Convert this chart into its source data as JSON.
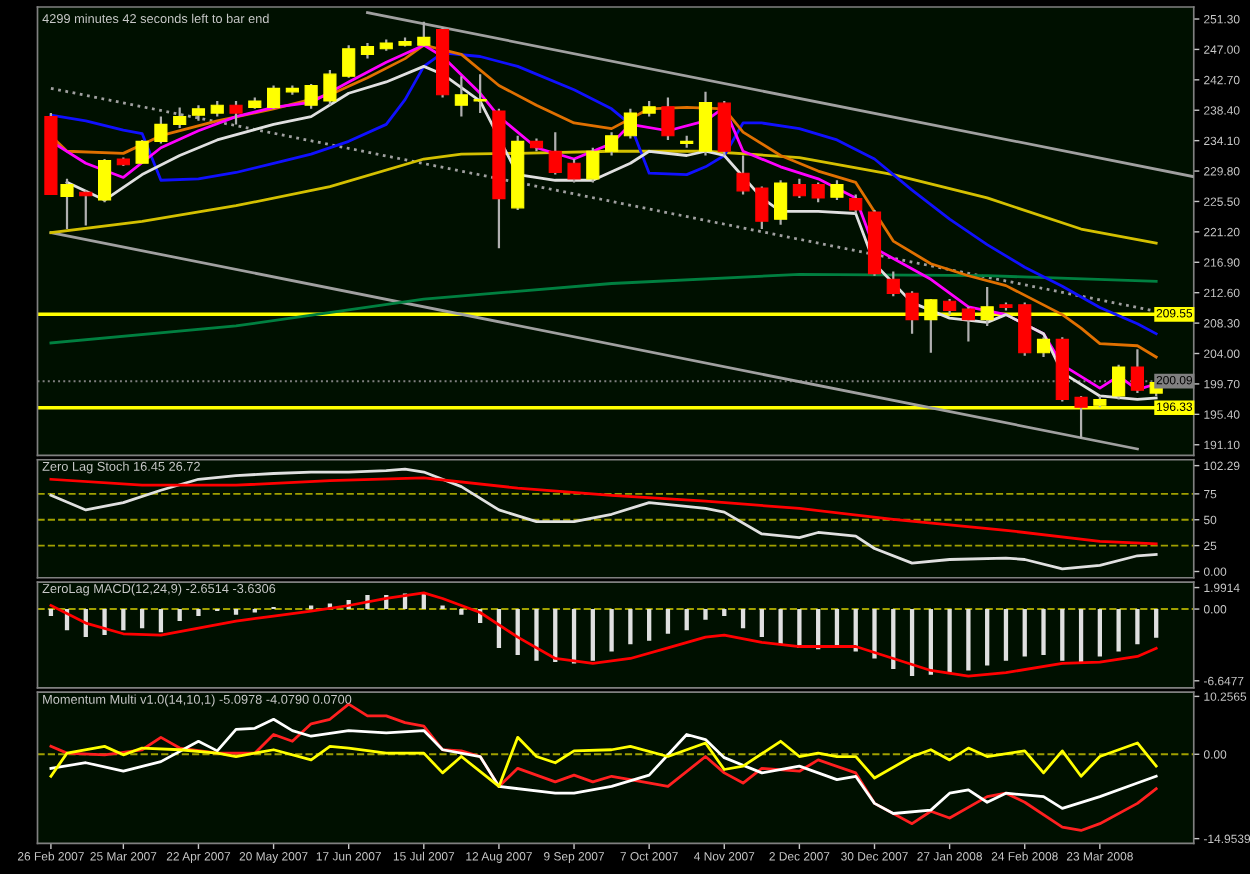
{
  "chart_data": [
    {
      "type": "candlestick",
      "title": "4299 minutes 42 seconds left to bar end",
      "x": [
        "2007-02-26",
        "2007-03-04",
        "2007-03-11",
        "2007-03-18",
        "2007-03-25",
        "2007-04-01",
        "2007-04-08",
        "2007-04-15",
        "2007-04-22",
        "2007-04-29",
        "2007-05-06",
        "2007-05-13",
        "2007-05-20",
        "2007-05-27",
        "2007-06-03",
        "2007-06-10",
        "2007-06-17",
        "2007-06-24",
        "2007-07-01",
        "2007-07-08",
        "2007-07-15",
        "2007-07-22",
        "2007-07-29",
        "2007-08-05",
        "2007-08-12",
        "2007-08-19",
        "2007-08-26",
        "2007-09-02",
        "2007-09-09",
        "2007-09-16",
        "2007-09-23",
        "2007-09-30",
        "2007-10-07",
        "2007-10-14",
        "2007-10-21",
        "2007-10-28",
        "2007-11-04",
        "2007-11-11",
        "2007-11-18",
        "2007-11-25",
        "2007-12-02",
        "2007-12-09",
        "2007-12-16",
        "2007-12-23",
        "2007-12-30",
        "2008-01-06",
        "2008-01-13",
        "2008-01-20",
        "2008-01-27",
        "2008-02-03",
        "2008-02-10",
        "2008-02-17",
        "2008-02-24",
        "2008-03-02",
        "2008-03-09",
        "2008-03-16",
        "2008-03-23",
        "2008-03-30",
        "2008-04-06",
        "2008-04-13"
      ],
      "ohlc": [
        [
          237.5,
          238.0,
          226.5,
          226.5
        ],
        [
          226.2,
          228.7,
          221.6,
          227.9
        ],
        [
          226.8,
          227.1,
          222.1,
          226.3
        ],
        [
          225.7,
          231.5,
          225.4,
          231.3
        ],
        [
          231.5,
          231.7,
          230.5,
          230.7
        ],
        [
          230.9,
          234.2,
          230.9,
          234.0
        ],
        [
          234.0,
          237.5,
          233.7,
          236.4
        ],
        [
          236.4,
          238.8,
          235.9,
          237.5
        ],
        [
          237.7,
          239.1,
          236.9,
          238.6
        ],
        [
          238.0,
          239.7,
          237.5,
          239.1
        ],
        [
          239.1,
          239.7,
          236.4,
          238.0
        ],
        [
          238.8,
          240.2,
          238.6,
          239.7
        ],
        [
          238.8,
          241.9,
          238.6,
          241.5
        ],
        [
          241.0,
          241.9,
          240.6,
          241.5
        ],
        [
          239.1,
          242.1,
          238.6,
          241.9
        ],
        [
          239.7,
          244.1,
          239.1,
          243.5
        ],
        [
          243.2,
          247.6,
          243.0,
          247.1
        ],
        [
          246.3,
          247.9,
          245.7,
          247.4
        ],
        [
          247.1,
          248.4,
          246.8,
          247.9
        ],
        [
          247.6,
          248.7,
          247.4,
          248.1
        ],
        [
          247.6,
          250.9,
          247.4,
          248.7
        ],
        [
          249.8,
          250.1,
          240.2,
          240.6
        ],
        [
          239.1,
          243.2,
          237.5,
          240.6
        ],
        [
          239.7,
          243.5,
          238.0,
          239.9
        ],
        [
          238.3,
          238.6,
          218.9,
          225.9
        ],
        [
          224.6,
          234.8,
          224.3,
          234.0
        ],
        [
          234.0,
          234.4,
          232.6,
          233.1
        ],
        [
          232.6,
          235.3,
          229.3,
          229.6
        ],
        [
          230.9,
          231.5,
          228.2,
          228.7
        ],
        [
          228.7,
          233.1,
          228.2,
          232.6
        ],
        [
          232.6,
          235.3,
          232.0,
          234.8
        ],
        [
          234.8,
          238.6,
          234.4,
          238.0
        ],
        [
          238.0,
          239.7,
          237.5,
          238.9
        ],
        [
          238.9,
          240.2,
          234.2,
          234.8
        ],
        [
          233.7,
          234.8,
          233.1,
          234.0
        ],
        [
          232.6,
          241.0,
          232.0,
          239.5
        ],
        [
          239.4,
          239.7,
          232.0,
          232.6
        ],
        [
          229.5,
          232.0,
          226.5,
          227.0
        ],
        [
          227.4,
          227.6,
          221.6,
          222.7
        ],
        [
          223.0,
          228.5,
          222.2,
          228.1
        ],
        [
          227.9,
          228.7,
          226.0,
          226.3
        ],
        [
          227.9,
          228.2,
          225.4,
          226.0
        ],
        [
          226.1,
          228.5,
          225.7,
          227.9
        ],
        [
          225.9,
          226.5,
          223.8,
          224.3
        ],
        [
          224.0,
          224.3,
          215.0,
          215.3
        ],
        [
          214.5,
          215.6,
          212.1,
          212.5
        ],
        [
          212.5,
          212.8,
          206.8,
          208.8
        ],
        [
          208.8,
          211.7,
          204.1,
          211.6
        ],
        [
          211.4,
          211.7,
          209.5,
          210.1
        ],
        [
          210.3,
          210.6,
          205.7,
          208.8
        ],
        [
          208.8,
          213.4,
          207.9,
          210.6
        ],
        [
          210.9,
          211.2,
          210.1,
          210.5
        ],
        [
          210.9,
          211.2,
          203.7,
          204.1
        ],
        [
          204.1,
          206.3,
          203.5,
          206.0
        ],
        [
          206.0,
          206.3,
          197.2,
          197.5
        ],
        [
          197.8,
          198.0,
          192.0,
          196.4
        ],
        [
          196.7,
          198.0,
          196.4,
          197.5
        ],
        [
          198.0,
          202.4,
          197.5,
          202.1
        ],
        [
          202.1,
          204.6,
          198.4,
          198.8
        ],
        [
          198.4,
          200.2,
          198.0,
          199.9
        ]
      ],
      "colors": [
        "#ff0000",
        "#ffff00",
        "#ff0000",
        "#ffff00",
        "#ff0000",
        "#ffff00",
        "#ffff00",
        "#ffff00",
        "#ffff00",
        "#ffff00",
        "#ff0000",
        "#ffff00",
        "#ffff00",
        "#ffff00",
        "#ffff00",
        "#ffff00",
        "#ffff00",
        "#ffff00",
        "#ffff00",
        "#ffff00",
        "#ffff00",
        "#ff0000",
        "#ffff00",
        "#ffff00",
        "#ff0000",
        "#ffff00",
        "#ff0000",
        "#ff0000",
        "#ff0000",
        "#ffff00",
        "#ffff00",
        "#ffff00",
        "#ffff00",
        "#ff0000",
        "#ffff00",
        "#ffff00",
        "#ff0000",
        "#ff0000",
        "#ff0000",
        "#ffff00",
        "#ff0000",
        "#ff0000",
        "#ffff00",
        "#ff0000",
        "#ff0000",
        "#ff0000",
        "#ff0000",
        "#ffff00",
        "#ff0000",
        "#ff0000",
        "#ffff00",
        "#ff0000",
        "#ff0000",
        "#ffff00",
        "#ff0000",
        "#ff0000",
        "#ffff00",
        "#ffff00",
        "#ff0000",
        "#ffff00"
      ],
      "series": [
        {
          "type": "line",
          "color": "#a0a0a0",
          "x": [
            "2007-06-24",
            "2008-04-27"
          ],
          "values": [
            252.2,
            229.0
          ]
        },
        {
          "type": "line",
          "color": "#a0a0a0",
          "line_style": "dotted",
          "x": [
            "2007-02-26",
            "2008-04-27"
          ],
          "values": [
            241.5,
            208.9
          ]
        },
        {
          "type": "line",
          "color": "#a0a0a0",
          "x": [
            "2007-02-26",
            "2008-04-06"
          ],
          "values": [
            221.1,
            190.5
          ]
        },
        {
          "type": "line",
          "color": "#008040",
          "x": [
            "2007-02-26",
            "2007-05-06",
            "2007-07-15",
            "2007-09-23",
            "2007-12-02",
            "2008-02-10",
            "2008-04-13"
          ],
          "values": [
            205.5,
            207.9,
            211.7,
            213.9,
            215.2,
            215.0,
            214.2
          ]
        },
        {
          "type": "line",
          "color": "#d4c000",
          "x": [
            "2007-02-26",
            "2007-04-01",
            "2007-05-06",
            "2007-06-10",
            "2007-07-15",
            "2007-07-29",
            "2007-08-19",
            "2007-09-23",
            "2007-10-28",
            "2007-12-02",
            "2008-01-06",
            "2008-02-10",
            "2008-03-16",
            "2008-04-13"
          ],
          "values": [
            221.1,
            222.7,
            224.9,
            227.6,
            231.5,
            232.2,
            232.3,
            232.6,
            232.6,
            231.7,
            229.3,
            226.0,
            221.6,
            219.6
          ]
        },
        {
          "type": "line",
          "color": "#1010ff",
          "x": [
            "2007-02-26",
            "2007-03-11",
            "2007-03-25",
            "2007-04-01",
            "2007-04-08",
            "2007-04-22",
            "2007-05-06",
            "2007-05-20",
            "2007-06-03",
            "2007-06-17",
            "2007-07-01",
            "2007-07-08",
            "2007-07-15",
            "2007-07-22",
            "2007-08-05",
            "2007-08-19",
            "2007-09-09",
            "2007-09-23",
            "2007-09-30",
            "2007-10-07",
            "2007-10-21",
            "2007-10-28",
            "2007-11-04",
            "2007-11-11",
            "2007-11-18",
            "2007-12-02",
            "2007-12-16",
            "2007-12-30",
            "2008-01-13",
            "2008-01-27",
            "2008-02-10",
            "2008-02-24",
            "2008-03-09",
            "2008-03-23",
            "2008-04-06",
            "2008-04-13"
          ],
          "values": [
            237.7,
            236.9,
            235.6,
            235.1,
            228.5,
            228.7,
            229.6,
            230.9,
            232.2,
            234.0,
            236.4,
            239.9,
            244.6,
            246.5,
            246.0,
            244.6,
            241.3,
            238.6,
            236.4,
            229.5,
            229.3,
            230.4,
            232.0,
            236.6,
            236.6,
            235.8,
            234.2,
            231.5,
            227.1,
            223.0,
            219.4,
            216.2,
            213.5,
            210.5,
            208.2,
            206.8
          ]
        },
        {
          "type": "line",
          "color": "#e07000",
          "x": [
            "2007-02-26",
            "2007-03-04",
            "2007-03-25",
            "2007-04-08",
            "2007-04-29",
            "2007-05-20",
            "2007-06-10",
            "2007-06-24",
            "2007-07-08",
            "2007-07-15",
            "2007-07-29",
            "2007-08-12",
            "2007-08-26",
            "2007-09-09",
            "2007-09-23",
            "2007-10-07",
            "2007-10-21",
            "2007-11-04",
            "2007-11-11",
            "2007-11-25",
            "2007-12-09",
            "2007-12-23",
            "2008-01-06",
            "2008-01-20",
            "2008-02-03",
            "2008-02-17",
            "2008-03-09",
            "2008-03-16",
            "2008-03-23",
            "2008-04-06",
            "2008-04-13"
          ],
          "values": [
            234.8,
            232.6,
            232.3,
            234.8,
            236.9,
            238.6,
            240.6,
            243.0,
            245.7,
            247.6,
            246.3,
            241.9,
            239.1,
            236.6,
            235.8,
            238.6,
            238.8,
            238.6,
            235.3,
            232.0,
            229.8,
            228.2,
            219.9,
            216.7,
            215.0,
            213.6,
            209.5,
            207.6,
            205.4,
            205.1,
            203.5
          ]
        },
        {
          "type": "line",
          "color": "#ff00ff",
          "x": [
            "2007-02-26",
            "2007-03-11",
            "2007-03-25",
            "2007-04-08",
            "2007-04-22",
            "2007-05-06",
            "2007-05-20",
            "2007-06-03",
            "2007-06-17",
            "2007-07-01",
            "2007-07-15",
            "2007-07-22",
            "2007-08-05",
            "2007-08-12",
            "2007-08-26",
            "2007-09-09",
            "2007-09-23",
            "2007-09-30",
            "2007-10-14",
            "2007-10-28",
            "2007-11-04",
            "2007-11-11",
            "2007-11-25",
            "2007-12-09",
            "2007-12-23",
            "2007-12-30",
            "2008-01-20",
            "2008-02-03",
            "2008-02-17",
            "2008-03-02",
            "2008-03-09",
            "2008-03-23",
            "2008-03-30",
            "2008-04-06",
            "2008-04-13"
          ],
          "values": [
            234.0,
            230.9,
            228.9,
            233.1,
            235.5,
            237.5,
            238.8,
            239.5,
            242.4,
            245.2,
            247.6,
            246.0,
            240.8,
            237.5,
            233.1,
            231.5,
            233.7,
            236.4,
            235.5,
            236.9,
            238.8,
            232.6,
            230.4,
            228.7,
            226.0,
            218.9,
            214.5,
            210.6,
            209.5,
            206.8,
            202.4,
            199.1,
            200.8,
            198.9,
            199.7
          ]
        },
        {
          "type": "line",
          "color": "#e0e0e0",
          "x": [
            "2007-03-04",
            "2007-03-18",
            "2007-04-01",
            "2007-04-15",
            "2007-04-29",
            "2007-05-20",
            "2007-06-03",
            "2007-06-17",
            "2007-07-01",
            "2007-07-15",
            "2007-07-22",
            "2007-08-05",
            "2007-08-19",
            "2007-09-02",
            "2007-09-16",
            "2007-09-30",
            "2007-10-07",
            "2007-10-21",
            "2007-10-28",
            "2007-11-04",
            "2007-11-18",
            "2007-11-25",
            "2007-12-09",
            "2007-12-23",
            "2007-12-30",
            "2008-01-13",
            "2008-01-27",
            "2008-02-10",
            "2008-02-17",
            "2008-03-02",
            "2008-03-09",
            "2008-03-23",
            "2008-04-06",
            "2008-04-13"
          ],
          "values": [
            228.2,
            225.7,
            229.3,
            232.0,
            234.2,
            236.4,
            237.5,
            240.8,
            242.4,
            244.6,
            243.5,
            239.7,
            229.3,
            228.5,
            228.5,
            230.9,
            232.6,
            232.0,
            232.6,
            232.0,
            226.0,
            224.1,
            224.1,
            223.8,
            216.7,
            211.2,
            209.0,
            208.4,
            209.5,
            206.8,
            201.3,
            198.0,
            197.5,
            197.7
          ]
        }
      ],
      "ref_lines": [
        {
          "axis": "y",
          "value": 209.55,
          "label": "209.55",
          "color": "#ffff00"
        },
        {
          "axis": "y",
          "value": 196.33,
          "label": "196.33",
          "color": "#ffff00"
        },
        {
          "axis": "y",
          "value": 200.09,
          "label": "200.09",
          "color": "#808080",
          "line_style": "dotted"
        }
      ],
      "xlim": [
        "2007-02-21",
        "2008-04-27"
      ],
      "ylim": [
        189.6,
        253.0
      ],
      "yticks": [
        {
          "value": 191.1,
          "label": "191.10"
        },
        {
          "value": 195.4,
          "label": "195.40"
        },
        {
          "value": 199.7,
          "label": "199.70"
        },
        {
          "value": 204.0,
          "label": "204.00"
        },
        {
          "value": 208.3,
          "label": "208.30"
        },
        {
          "value": 212.6,
          "label": "212.60"
        },
        {
          "value": 216.9,
          "label": "216.90"
        },
        {
          "value": 221.2,
          "label": "221.20"
        },
        {
          "value": 225.5,
          "label": "225.50"
        },
        {
          "value": 229.8,
          "label": "229.80"
        },
        {
          "value": 234.1,
          "label": "234.10"
        },
        {
          "value": 238.4,
          "label": "238.40"
        },
        {
          "value": 242.7,
          "label": "242.70"
        },
        {
          "value": 247.0,
          "label": "247.00"
        },
        {
          "value": 251.3,
          "label": "251.30"
        }
      ],
      "tick_labels": "y"
    },
    {
      "type": "line",
      "title": "Zero Lag Stoch 16.45 26.72",
      "series": [
        {
          "color": "#e0e0e0",
          "x": [
            "2007-02-26",
            "2007-03-11",
            "2007-03-25",
            "2007-04-08",
            "2007-04-22",
            "2007-05-06",
            "2007-05-20",
            "2007-06-03",
            "2007-06-17",
            "2007-07-01",
            "2007-07-08",
            "2007-07-15",
            "2007-07-29",
            "2007-08-12",
            "2007-08-26",
            "2007-09-09",
            "2007-09-23",
            "2007-10-07",
            "2007-10-28",
            "2007-11-04",
            "2007-11-18",
            "2007-12-02",
            "2007-12-09",
            "2007-12-23",
            "2007-12-30",
            "2008-01-13",
            "2008-01-27",
            "2008-02-17",
            "2008-02-24",
            "2008-03-09",
            "2008-03-23",
            "2008-04-06",
            "2008-04-13"
          ],
          "values": [
            73.6,
            59.5,
            66.6,
            78.5,
            89.1,
            92.6,
            94.7,
            96.1,
            96.1,
            97.5,
            98.9,
            96.1,
            82.0,
            59.5,
            48.2,
            48.2,
            55.3,
            66.6,
            60.9,
            57.4,
            36.3,
            32.8,
            37.7,
            34.2,
            22.2,
            8.1,
            11.6,
            13.0,
            11.6,
            2.5,
            6.0,
            15.2,
            16.45
          ]
        },
        {
          "color": "#ff0000",
          "x": [
            "2007-02-26",
            "2007-04-01",
            "2007-05-06",
            "2007-06-10",
            "2007-07-15",
            "2007-08-19",
            "2007-09-23",
            "2007-10-28",
            "2007-12-02",
            "2008-01-06",
            "2008-02-17",
            "2008-03-23",
            "2008-04-13"
          ],
          "values": [
            89.1,
            83.4,
            83.4,
            87.7,
            90.5,
            80.6,
            73.6,
            68.0,
            60.9,
            50.4,
            39.8,
            29.2,
            26.72
          ]
        }
      ],
      "ref_lines": [
        {
          "axis": "y",
          "value": 75,
          "color": "#a0a000",
          "line_style": "dashed"
        },
        {
          "axis": "y",
          "value": 50,
          "color": "#a0a000",
          "line_style": "dashed"
        },
        {
          "axis": "y",
          "value": 25,
          "color": "#a0a000",
          "line_style": "dashed"
        }
      ],
      "xlim": [
        "2007-02-21",
        "2008-04-27"
      ],
      "ylim": [
        -6,
        108
      ],
      "yticks": [
        {
          "value": 0,
          "label": "0.00"
        },
        25,
        50,
        75,
        102.29
      ],
      "tick_labels": "y"
    },
    {
      "type": "bar",
      "title": "ZeroLag MACD(12,24,9) -2.6514 -3.6306",
      "x": [
        "2007-02-26",
        "2007-03-04",
        "2007-03-11",
        "2007-03-18",
        "2007-03-25",
        "2007-04-01",
        "2007-04-08",
        "2007-04-15",
        "2007-04-22",
        "2007-04-29",
        "2007-05-06",
        "2007-05-13",
        "2007-05-20",
        "2007-05-27",
        "2007-06-03",
        "2007-06-10",
        "2007-06-17",
        "2007-06-24",
        "2007-07-01",
        "2007-07-08",
        "2007-07-15",
        "2007-07-22",
        "2007-07-29",
        "2007-08-05",
        "2007-08-12",
        "2007-08-19",
        "2007-08-26",
        "2007-09-02",
        "2007-09-09",
        "2007-09-16",
        "2007-09-23",
        "2007-09-30",
        "2007-10-07",
        "2007-10-14",
        "2007-10-21",
        "2007-10-28",
        "2007-11-04",
        "2007-11-11",
        "2007-11-18",
        "2007-11-25",
        "2007-12-02",
        "2007-12-09",
        "2007-12-16",
        "2007-12-23",
        "2007-12-30",
        "2008-01-06",
        "2008-01-13",
        "2008-01-20",
        "2008-01-27",
        "2008-02-03",
        "2008-02-10",
        "2008-02-17",
        "2008-02-24",
        "2008-03-02",
        "2008-03-09",
        "2008-03-16",
        "2008-03-23",
        "2008-03-30",
        "2008-04-06",
        "2008-04-13"
      ],
      "series": [
        {
          "type": "bar",
          "color": "#e0e0e0",
          "values": [
            -0.65,
            -1.96,
            -2.6,
            -2.4,
            -1.96,
            -1.77,
            -2.16,
            -1.11,
            -0.65,
            -0.19,
            -0.52,
            -0.32,
            0.2,
            null,
            0.33,
            0.52,
            0.85,
            1.31,
            1.31,
            1.44,
            1.5,
            0.33,
            -0.52,
            -1.3,
            -3.6,
            -4.26,
            -4.78,
            -4.91,
            -5.04,
            -4.78,
            -3.93,
            -3.27,
            -2.94,
            -2.29,
            -1.96,
            -0.98,
            -0.65,
            -1.77,
            -2.6,
            -3.27,
            -3.6,
            -3.73,
            -3.6,
            -3.93,
            -4.58,
            -5.56,
            -6.21,
            -6.08,
            -5.89,
            -5.69,
            -5.23,
            -4.78,
            -4.39,
            -4.26,
            -4.78,
            -4.91,
            -4.39,
            -3.93,
            -3.27,
            -2.65
          ]
        },
        {
          "type": "line",
          "color": "#ff0000",
          "x": [
            "2007-02-26",
            "2007-03-11",
            "2007-03-25",
            "2007-04-08",
            "2007-04-22",
            "2007-05-06",
            "2007-05-20",
            "2007-06-03",
            "2007-06-17",
            "2007-07-01",
            "2007-07-15",
            "2007-07-22",
            "2007-08-05",
            "2007-08-19",
            "2007-09-02",
            "2007-09-16",
            "2007-09-30",
            "2007-10-14",
            "2007-10-28",
            "2007-11-04",
            "2007-11-18",
            "2007-12-02",
            "2007-12-23",
            "2008-01-06",
            "2008-01-20",
            "2008-02-03",
            "2008-02-17",
            "2008-03-09",
            "2008-03-23",
            "2008-04-06",
            "2008-04-13"
          ],
          "values": [
            0.33,
            -1.3,
            -2.29,
            -2.42,
            -1.77,
            -1.11,
            -0.65,
            -0.19,
            0.33,
            0.98,
            1.5,
            0.98,
            -0.32,
            -2.6,
            -4.58,
            -5.04,
            -4.58,
            -3.6,
            -2.6,
            -2.42,
            -3.08,
            -3.47,
            -3.47,
            -4.58,
            -5.69,
            -6.21,
            -5.89,
            -5.04,
            -4.91,
            -4.39,
            -3.63
          ]
        }
      ],
      "ref_lines": [
        {
          "axis": "y",
          "value": 0,
          "color": "#a0a000",
          "line_style": "dashed"
        }
      ],
      "xlim": [
        "2007-02-21",
        "2008-04-27"
      ],
      "ylim": [
        -7.3,
        2.5
      ],
      "yticks": [
        -6.6477,
        {
          "value": 0,
          "label": "0.00"
        },
        1.9914
      ],
      "tick_labels": "y"
    },
    {
      "type": "line",
      "title": "Momentum Multi v1.0(14,10,1) -5.0978 -4.0790 0.0700",
      "series": [
        {
          "color": "#ff2020",
          "x": [
            "2007-02-26",
            "2007-03-04",
            "2007-03-18",
            "2007-04-01",
            "2007-04-08",
            "2007-04-15",
            "2007-04-29",
            "2007-05-13",
            "2007-05-20",
            "2007-05-27",
            "2007-06-03",
            "2007-06-10",
            "2007-06-17",
            "2007-06-24",
            "2007-07-01",
            "2007-07-08",
            "2007-07-15",
            "2007-07-22",
            "2007-07-29",
            "2007-08-05",
            "2007-08-12",
            "2007-08-19",
            "2007-09-02",
            "2007-09-09",
            "2007-09-16",
            "2007-09-23",
            "2007-09-30",
            "2007-10-14",
            "2007-10-28",
            "2007-11-04",
            "2007-11-11",
            "2007-11-18",
            "2007-12-02",
            "2007-12-09",
            "2007-12-23",
            "2007-12-30",
            "2008-01-13",
            "2008-01-20",
            "2008-01-27",
            "2008-02-10",
            "2008-02-17",
            "2008-02-24",
            "2008-03-09",
            "2008-03-16",
            "2008-03-23",
            "2008-04-06",
            "2008-04-13"
          ],
          "values": [
            1.4,
            0.2,
            -0.1,
            0.8,
            3.0,
            1.1,
            0.2,
            0.2,
            3.5,
            2.3,
            5.4,
            6.2,
            8.9,
            6.8,
            6.8,
            5.6,
            5.0,
            0.8,
            0.6,
            -0.4,
            -5.7,
            -2.5,
            -4.9,
            -3.7,
            -4.9,
            -3.9,
            -4.5,
            -5.7,
            -0.4,
            -3.3,
            -5.1,
            -2.5,
            -3.0,
            -1.0,
            -3.3,
            -8.7,
            -12.3,
            -10.1,
            -11.3,
            -7.5,
            -6.9,
            -8.5,
            -12.9,
            -13.5,
            -12.3,
            -8.7,
            -6.1
          ]
        },
        {
          "color": "#ffffff",
          "x": [
            "2007-02-26",
            "2007-03-11",
            "2007-03-25",
            "2007-04-08",
            "2007-04-22",
            "2007-04-29",
            "2007-05-06",
            "2007-05-13",
            "2007-05-20",
            "2007-05-27",
            "2007-06-03",
            "2007-06-17",
            "2007-07-01",
            "2007-07-15",
            "2007-07-22",
            "2007-08-05",
            "2007-08-12",
            "2007-09-02",
            "2007-09-09",
            "2007-09-23",
            "2007-10-07",
            "2007-10-21",
            "2007-10-28",
            "2007-11-04",
            "2007-11-18",
            "2007-12-02",
            "2007-12-16",
            "2007-12-23",
            "2007-12-30",
            "2008-01-06",
            "2008-01-20",
            "2008-01-27",
            "2008-02-03",
            "2008-02-10",
            "2008-02-17",
            "2008-03-02",
            "2008-03-09",
            "2008-03-23",
            "2008-04-06",
            "2008-04-13"
          ],
          "values": [
            -2.5,
            -1.5,
            -3.0,
            -1.3,
            2.3,
            0.6,
            4.4,
            4.6,
            6.2,
            4.2,
            3.2,
            4.2,
            3.8,
            4.2,
            0.8,
            -0.4,
            -5.7,
            -6.9,
            -6.9,
            -5.7,
            -3.7,
            3.5,
            2.6,
            -0.6,
            -3.3,
            -2.1,
            -4.5,
            -3.9,
            -8.7,
            -10.5,
            -9.9,
            -6.9,
            -6.3,
            -8.5,
            -6.9,
            -7.5,
            -9.6,
            -7.5,
            -5.1,
            -3.9
          ]
        },
        {
          "color": "#ffff00",
          "x": [
            "2007-02-26",
            "2007-03-04",
            "2007-03-18",
            "2007-03-25",
            "2007-04-01",
            "2007-04-15",
            "2007-04-29",
            "2007-05-06",
            "2007-05-20",
            "2007-06-03",
            "2007-06-10",
            "2007-06-17",
            "2007-07-01",
            "2007-07-15",
            "2007-07-22",
            "2007-07-29",
            "2007-08-12",
            "2007-08-19",
            "2007-08-26",
            "2007-09-02",
            "2007-09-09",
            "2007-09-23",
            "2007-09-30",
            "2007-10-14",
            "2007-10-28",
            "2007-11-04",
            "2007-11-11",
            "2007-11-25",
            "2007-12-02",
            "2007-12-09",
            "2007-12-16",
            "2007-12-23",
            "2007-12-30",
            "2008-01-13",
            "2008-01-20",
            "2008-01-27",
            "2008-02-03",
            "2008-02-10",
            "2008-02-24",
            "2008-03-02",
            "2008-03-09",
            "2008-03-16",
            "2008-03-23",
            "2008-04-06",
            "2008-04-13"
          ],
          "values": [
            -3.9,
            0.2,
            1.4,
            -0.1,
            1.1,
            0.8,
            0.2,
            -0.4,
            0.8,
            -1.0,
            1.4,
            1.1,
            0.2,
            0.2,
            -3.3,
            -0.4,
            -5.7,
            3.0,
            -0.4,
            -1.5,
            0.6,
            0.8,
            1.4,
            -0.4,
            2.0,
            -2.7,
            -2.1,
            2.3,
            -0.4,
            0.2,
            -0.4,
            -0.4,
            -4.2,
            -0.4,
            0.8,
            -1.0,
            1.1,
            -0.4,
            0.6,
            -3.3,
            0.6,
            -3.9,
            -0.4,
            2.0,
            -2.1
          ]
        }
      ],
      "ref_lines": [
        {
          "axis": "y",
          "value": 0,
          "color": "#a0a000",
          "line_style": "dashed"
        }
      ],
      "xlim": [
        "2007-02-21",
        "2008-04-27"
      ],
      "ylim": [
        -15.8,
        11.0
      ],
      "yticks": [
        -14.9539,
        {
          "value": 0,
          "label": "0.00"
        },
        10.2565
      ],
      "xticks": [
        {
          "value": "2007-02-26",
          "label": "26 Feb 2007"
        },
        {
          "value": "2007-03-25",
          "label": "25 Mar 2007"
        },
        {
          "value": "2007-04-22",
          "label": "22 Apr 2007"
        },
        {
          "value": "2007-05-20",
          "label": "20 May 2007"
        },
        {
          "value": "2007-06-17",
          "label": "17 Jun 2007"
        },
        {
          "value": "2007-07-15",
          "label": "15 Jul 2007"
        },
        {
          "value": "2007-08-12",
          "label": "12 Aug 2007"
        },
        {
          "value": "2007-09-09",
          "label": "9 Sep 2007"
        },
        {
          "value": "2007-10-07",
          "label": "7 Oct 2007"
        },
        {
          "value": "2007-11-04",
          "label": "4 Nov 2007"
        },
        {
          "value": "2007-12-02",
          "label": "2 Dec 2007"
        },
        {
          "value": "2007-12-30",
          "label": "30 Dec 2007"
        },
        {
          "value": "2008-01-27",
          "label": "27 Jan 2008"
        },
        {
          "value": "2008-02-24",
          "label": "24 Feb 2008"
        },
        {
          "value": "2008-03-23",
          "label": "23 Mar 2008"
        }
      ]
    }
  ]
}
